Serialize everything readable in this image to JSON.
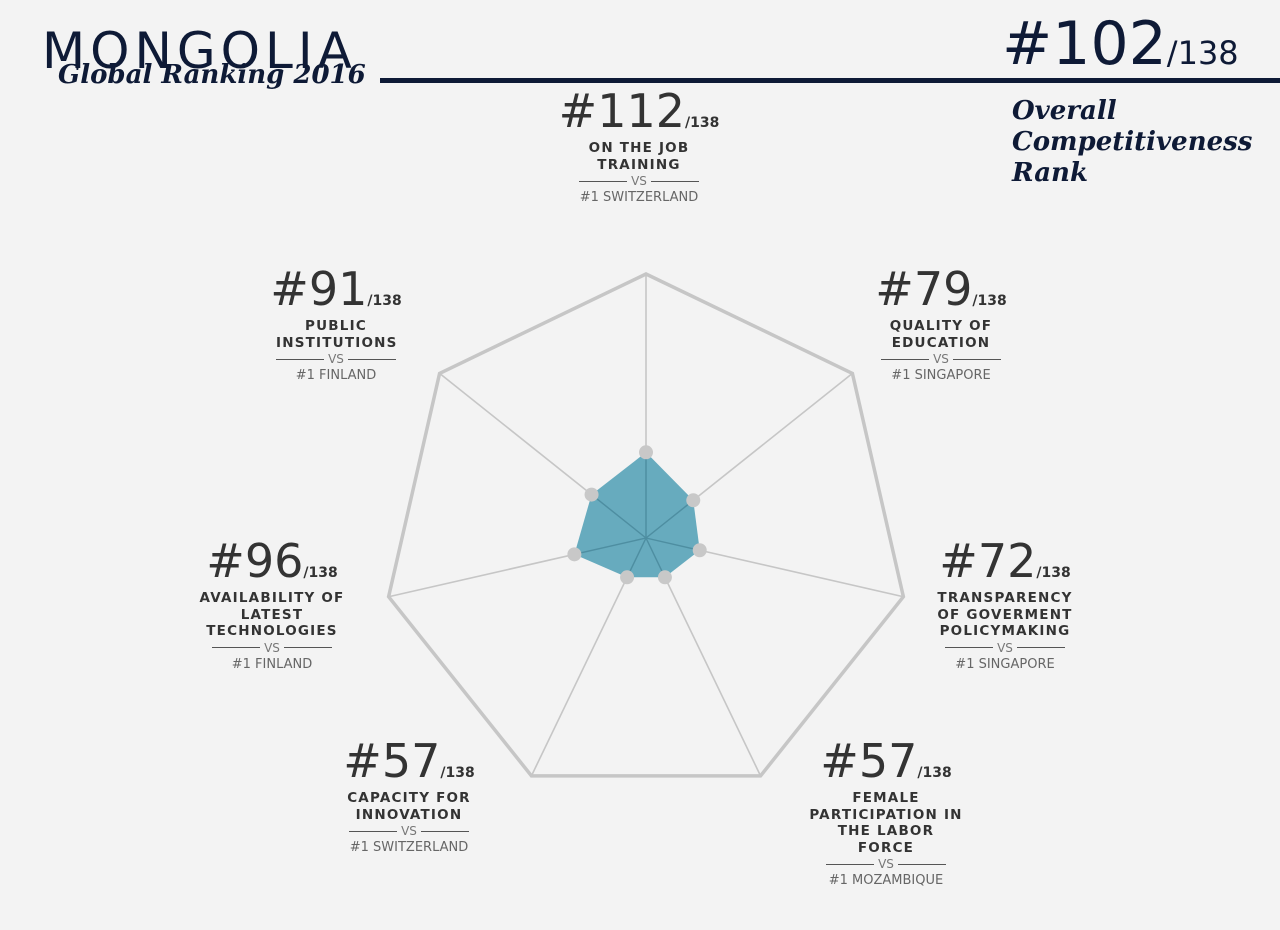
{
  "header": {
    "country": "MONGOLIA",
    "subtitle": "Global Ranking 2016",
    "overall_rank": "#102",
    "overall_total": "/138",
    "overall_label": "Overall Competitiveness Rank"
  },
  "colors": {
    "navy": "#0e1a36",
    "fill": "#5fa6bb",
    "grid": "#c6c6c6",
    "point": "#c8c8c8"
  },
  "chart_data": {
    "type": "radar",
    "scale_max": 138,
    "axes": [
      {
        "rank": "#112",
        "total": "/138",
        "name": "ON THE JOB TRAINING",
        "vs": "VS",
        "leader": "#1 SWITZERLAND",
        "value": 112
      },
      {
        "rank": "#79",
        "total": "/138",
        "name": "QUALITY OF EDUCATION",
        "vs": "VS",
        "leader": "#1 SINGAPORE",
        "value": 79
      },
      {
        "rank": "#72",
        "total": "/138",
        "name": "TRANSPARENCY OF GOVERMENT POLICYMAKING",
        "vs": "VS",
        "leader": "#1 SINGAPORE",
        "value": 72
      },
      {
        "rank": "#57",
        "total": "/138",
        "name": "FEMALE PARTICIPATION IN THE LABOR FORCE",
        "vs": "VS",
        "leader": "#1 MOZAMBIQUE",
        "value": 57
      },
      {
        "rank": "#57",
        "total": "/138",
        "name": "CAPACITY FOR INNOVATION",
        "vs": "VS",
        "leader": "#1 SWITZERLAND",
        "value": 57
      },
      {
        "rank": "#96",
        "total": "/138",
        "name": "AVAILABILITY OF LATEST TECHNOLOGIES",
        "vs": "VS",
        "leader": "#1 FINLAND",
        "value": 96
      },
      {
        "rank": "#91",
        "total": "/138",
        "name": "PUBLIC INSTITUTIONS",
        "vs": "VS",
        "leader": "#1 FINLAND",
        "value": 91
      }
    ]
  }
}
